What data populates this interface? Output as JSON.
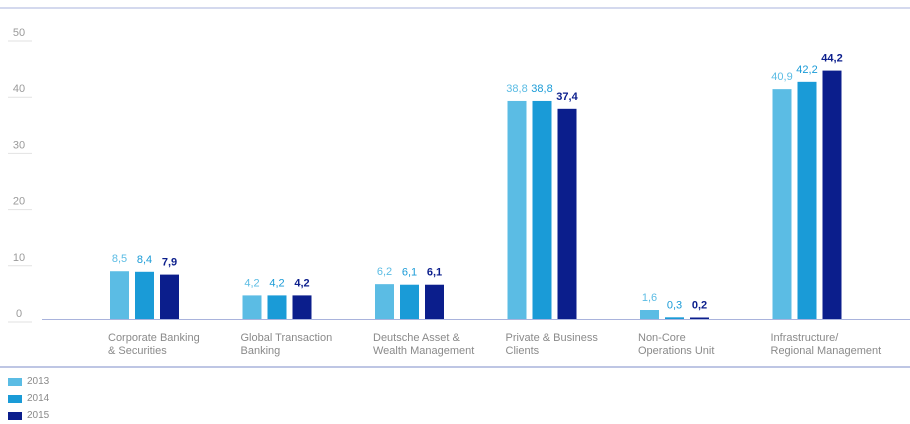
{
  "chart_data": {
    "type": "bar",
    "categories": [
      [
        "Corporate Banking",
        "& Securities"
      ],
      [
        "Global Transaction",
        "Banking"
      ],
      [
        "Deutsche Asset &",
        "Wealth Management"
      ],
      [
        "Private & Business",
        "Clients"
      ],
      [
        "Non-Core",
        "Operations Unit"
      ],
      [
        "Infrastructure/",
        "Regional Management"
      ]
    ],
    "series": [
      {
        "name": "2013",
        "color": "#5bbce4",
        "values": [
          8.5,
          4.2,
          6.2,
          38.8,
          1.6,
          40.9
        ],
        "labels": [
          "8,5",
          "4,2",
          "6,2",
          "38,8",
          "1,6",
          "40,9"
        ]
      },
      {
        "name": "2014",
        "color": "#1a9bd7",
        "values": [
          8.4,
          4.2,
          6.1,
          38.8,
          0.3,
          42.2
        ],
        "labels": [
          "8,4",
          "4,2",
          "6,1",
          "38,8",
          "0,3",
          "42,2"
        ]
      },
      {
        "name": "2015",
        "color": "#0b1e8c",
        "values": [
          7.9,
          4.2,
          6.1,
          37.4,
          0.2,
          44.2
        ],
        "labels": [
          "7,9",
          "4,2",
          "6,1",
          "37,4",
          "0,2",
          "44,2"
        ]
      }
    ],
    "ylim": [
      0,
      50
    ],
    "yticks": [
      "0",
      "10",
      "20",
      "30",
      "40",
      "50"
    ],
    "ytick_values": [
      0,
      10,
      20,
      30,
      40,
      50
    ],
    "grid": false,
    "legend_position": "bottom-left",
    "axis_color": "#a9b3dc"
  }
}
